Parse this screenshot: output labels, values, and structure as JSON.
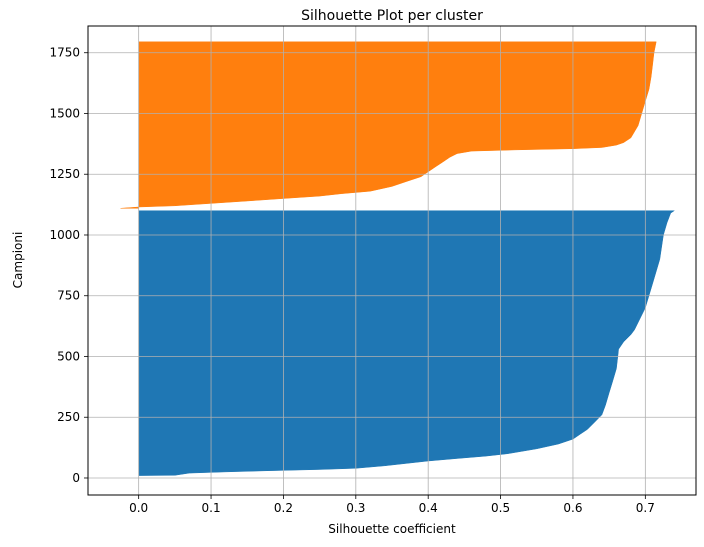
{
  "chart_data": {
    "type": "area",
    "title": "Silhouette Plot per cluster",
    "xlabel": "Silhouette coefficient",
    "ylabel": "Campioni",
    "xlim": [
      -0.07,
      0.77
    ],
    "ylim": [
      -70,
      1860
    ],
    "xticks": [
      0.0,
      0.1,
      0.2,
      0.3,
      0.4,
      0.5,
      0.6,
      0.7
    ],
    "xtick_labels": [
      "0.0",
      "0.1",
      "0.2",
      "0.3",
      "0.4",
      "0.5",
      "0.6",
      "0.7"
    ],
    "yticks": [
      0,
      250,
      500,
      750,
      1000,
      1250,
      1500,
      1750
    ],
    "ytick_labels": [
      "0",
      "250",
      "500",
      "750",
      "1000",
      "1250",
      "1500",
      "1750"
    ],
    "grid": true,
    "series": [
      {
        "color": "#1f77b4",
        "points": [
          [
            10,
            0.0
          ],
          [
            11,
            0.05
          ],
          [
            20,
            0.07
          ],
          [
            25,
            0.12
          ],
          [
            30,
            0.18
          ],
          [
            35,
            0.25
          ],
          [
            40,
            0.3
          ],
          [
            50,
            0.34
          ],
          [
            60,
            0.37
          ],
          [
            70,
            0.4
          ],
          [
            80,
            0.44
          ],
          [
            90,
            0.48
          ],
          [
            100,
            0.51
          ],
          [
            120,
            0.55
          ],
          [
            140,
            0.58
          ],
          [
            160,
            0.6
          ],
          [
            180,
            0.61
          ],
          [
            200,
            0.62
          ],
          [
            230,
            0.63
          ],
          [
            260,
            0.64
          ],
          [
            300,
            0.645
          ],
          [
            350,
            0.65
          ],
          [
            400,
            0.655
          ],
          [
            450,
            0.66
          ],
          [
            500,
            0.662
          ],
          [
            530,
            0.663
          ],
          [
            560,
            0.67
          ],
          [
            590,
            0.68
          ],
          [
            610,
            0.685
          ],
          [
            640,
            0.69
          ],
          [
            700,
            0.7
          ],
          [
            800,
            0.71
          ],
          [
            900,
            0.72
          ],
          [
            1000,
            0.725
          ],
          [
            1050,
            0.73
          ],
          [
            1090,
            0.735
          ],
          [
            1100,
            0.74
          ]
        ]
      },
      {
        "color": "#ff7f0e",
        "points": [
          [
            1110,
            -0.025
          ],
          [
            1115,
            0.0
          ],
          [
            1120,
            0.05
          ],
          [
            1130,
            0.1
          ],
          [
            1140,
            0.15
          ],
          [
            1150,
            0.2
          ],
          [
            1160,
            0.25
          ],
          [
            1170,
            0.28
          ],
          [
            1180,
            0.32
          ],
          [
            1200,
            0.35
          ],
          [
            1220,
            0.37
          ],
          [
            1240,
            0.39
          ],
          [
            1260,
            0.4
          ],
          [
            1280,
            0.41
          ],
          [
            1300,
            0.42
          ],
          [
            1320,
            0.43
          ],
          [
            1335,
            0.44
          ],
          [
            1345,
            0.46
          ],
          [
            1350,
            0.52
          ],
          [
            1355,
            0.6
          ],
          [
            1360,
            0.64
          ],
          [
            1370,
            0.66
          ],
          [
            1380,
            0.67
          ],
          [
            1400,
            0.68
          ],
          [
            1450,
            0.69
          ],
          [
            1500,
            0.695
          ],
          [
            1550,
            0.7
          ],
          [
            1600,
            0.705
          ],
          [
            1650,
            0.708
          ],
          [
            1700,
            0.71
          ],
          [
            1750,
            0.712
          ],
          [
            1795,
            0.715
          ]
        ]
      }
    ]
  }
}
